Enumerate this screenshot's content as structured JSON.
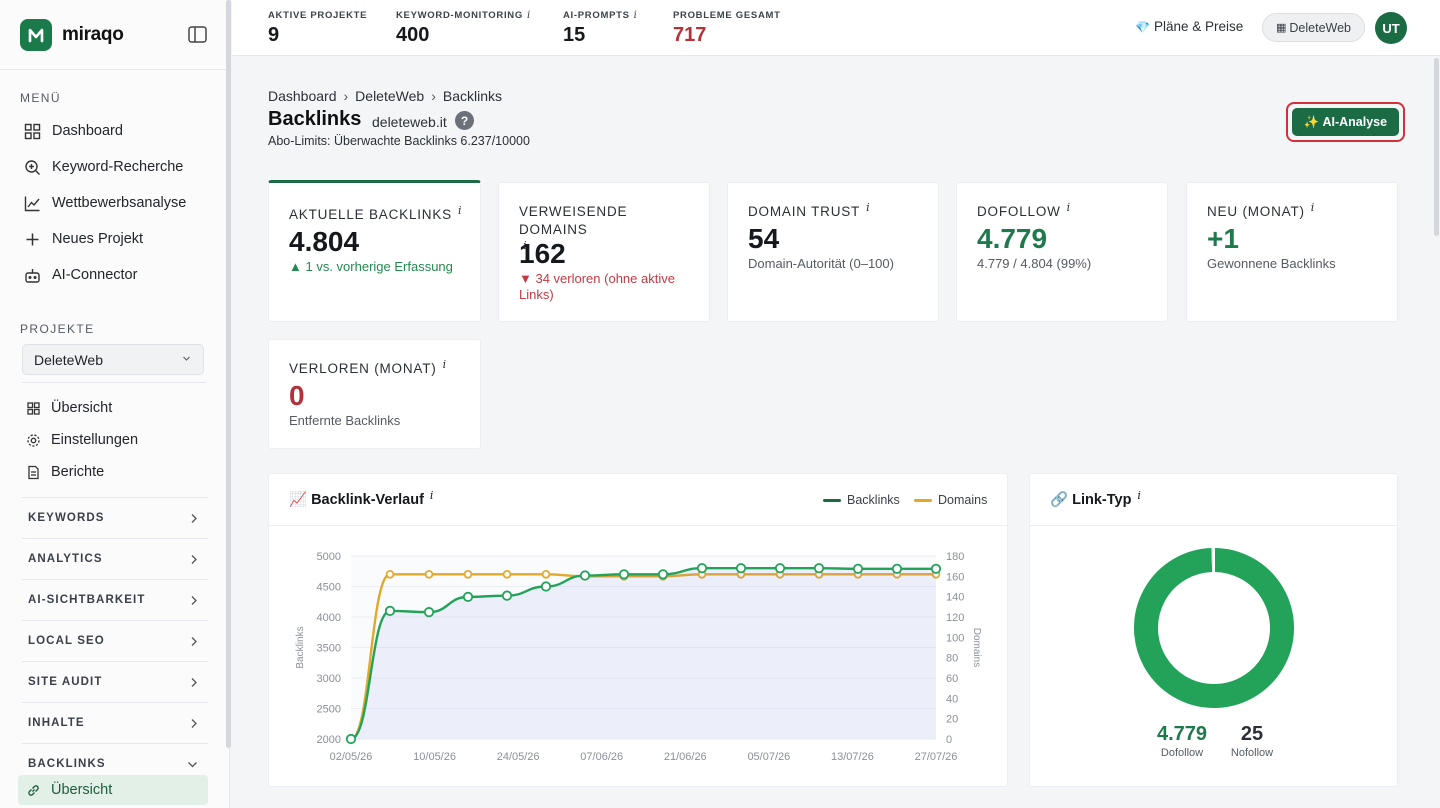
{
  "app": {
    "name": "miraqo"
  },
  "sidebar": {
    "menu_label": "MENÜ",
    "menu_items": [
      {
        "label": "Dashboard",
        "icon": "grid-icon"
      },
      {
        "label": "Keyword-Recherche",
        "icon": "search-plus-icon"
      },
      {
        "label": "Wettbewerbsanalyse",
        "icon": "line-chart-icon"
      },
      {
        "label": "Neues Projekt",
        "icon": "plus-icon"
      },
      {
        "label": "AI-Connector",
        "icon": "robot-icon"
      }
    ],
    "projects_label": "PROJEKTE",
    "project_selected": "DeleteWeb",
    "project_items": [
      {
        "label": "Übersicht",
        "icon": "grid-small-icon"
      },
      {
        "label": "Einstellungen",
        "icon": "gear-icon"
      },
      {
        "label": "Berichte",
        "icon": "document-icon"
      }
    ],
    "groups": [
      "KEYWORDS",
      "ANALYTICS",
      "AI-SICHTBARKEIT",
      "LOCAL SEO",
      "SITE AUDIT",
      "INHALTE",
      "BACKLINKS"
    ],
    "active_sub": "Übersicht"
  },
  "topbar": {
    "stats": [
      {
        "label": "AKTIVE PROJEKTE",
        "value": "9",
        "info": false
      },
      {
        "label": "KEYWORD-MONITORING",
        "value": "400",
        "info": true
      },
      {
        "label": "AI-PROMPTS",
        "value": "15",
        "info": true
      },
      {
        "label": "PROBLEME GESAMT",
        "value": "717",
        "info": false
      }
    ],
    "info_glyph": "i",
    "plans_label": "Pläne & Preise",
    "project_pill": "DeleteWeb",
    "avatar_initials": "UT"
  },
  "header": {
    "breadcrumb": [
      "Dashboard",
      "DeleteWeb",
      "Backlinks"
    ],
    "breadcrumb_sep": "›",
    "title": "Backlinks",
    "domain": "deleteweb.it",
    "help": "?",
    "limits": "Abo-Limits: Überwachte Backlinks 6.237/10000",
    "ai_button": "✨ AI-Analyse"
  },
  "kpis": [
    {
      "label": "AKTUELLE BACKLINKS",
      "value": "4.804",
      "sub": "▲ 1 vs. vorherige Erfassung"
    },
    {
      "label": "VERWEISENDE DOMAINS",
      "value": "162",
      "sub": "▼ 34 verloren (ohne aktive Links)"
    },
    {
      "label": "DOMAIN TRUST",
      "value": "54",
      "sub": "Domain-Autorität (0–100)"
    },
    {
      "label": "DOFOLLOW",
      "value": "4.779",
      "sub": "4.779 / 4.804 (99%)"
    },
    {
      "label": "NEU (MONAT)",
      "value": "+1",
      "sub": "Gewonnene Backlinks"
    },
    {
      "label": "VERLOREN (MONAT)",
      "value": "0",
      "sub": "Entfernte Backlinks"
    }
  ],
  "chart_data": [
    {
      "type": "line",
      "title": "📈 Backlink-Verlauf",
      "x_ticks": [
        "02/05/26",
        "10/05/26",
        "24/05/26",
        "07/06/26",
        "21/06/26",
        "05/07/26",
        "13/07/26",
        "27/07/26"
      ],
      "y_left_label": "Backlinks",
      "y_left_ticks": [
        2000,
        2500,
        3000,
        3500,
        4000,
        4500,
        5000
      ],
      "y_left_range": [
        2000,
        5000
      ],
      "y_right_label": "Domains",
      "y_right_ticks": [
        0,
        20,
        40,
        60,
        80,
        100,
        120,
        140,
        160,
        180
      ],
      "y_right_range": [
        0,
        180
      ],
      "legend_position": "top-right",
      "series": [
        {
          "name": "Backlinks",
          "axis": "left",
          "color": "#23a35a",
          "values": [
            2000,
            4100,
            4080,
            4330,
            4350,
            4500,
            4680,
            4700,
            4700,
            4800,
            4800,
            4800,
            4800,
            4790,
            4790,
            4790
          ]
        },
        {
          "name": "Domains",
          "axis": "right",
          "color": "#e2a82a",
          "values": [
            0,
            162,
            162,
            162,
            162,
            162,
            160,
            160,
            160,
            162,
            162,
            162,
            162,
            162,
            162,
            162
          ]
        }
      ]
    },
    {
      "type": "pie",
      "title": "🔗 Link-Typ",
      "slices": [
        {
          "name": "Dofollow",
          "value": 4779,
          "label": "4.779",
          "color": "#23a35a"
        },
        {
          "name": "Nofollow",
          "value": 25,
          "label": "25",
          "color": "#e6e8eb"
        }
      ]
    }
  ],
  "colors": {
    "brand": "#1b6b45",
    "danger": "#b5313a",
    "backlinks": "#23a35a",
    "domains": "#e2a82a"
  }
}
